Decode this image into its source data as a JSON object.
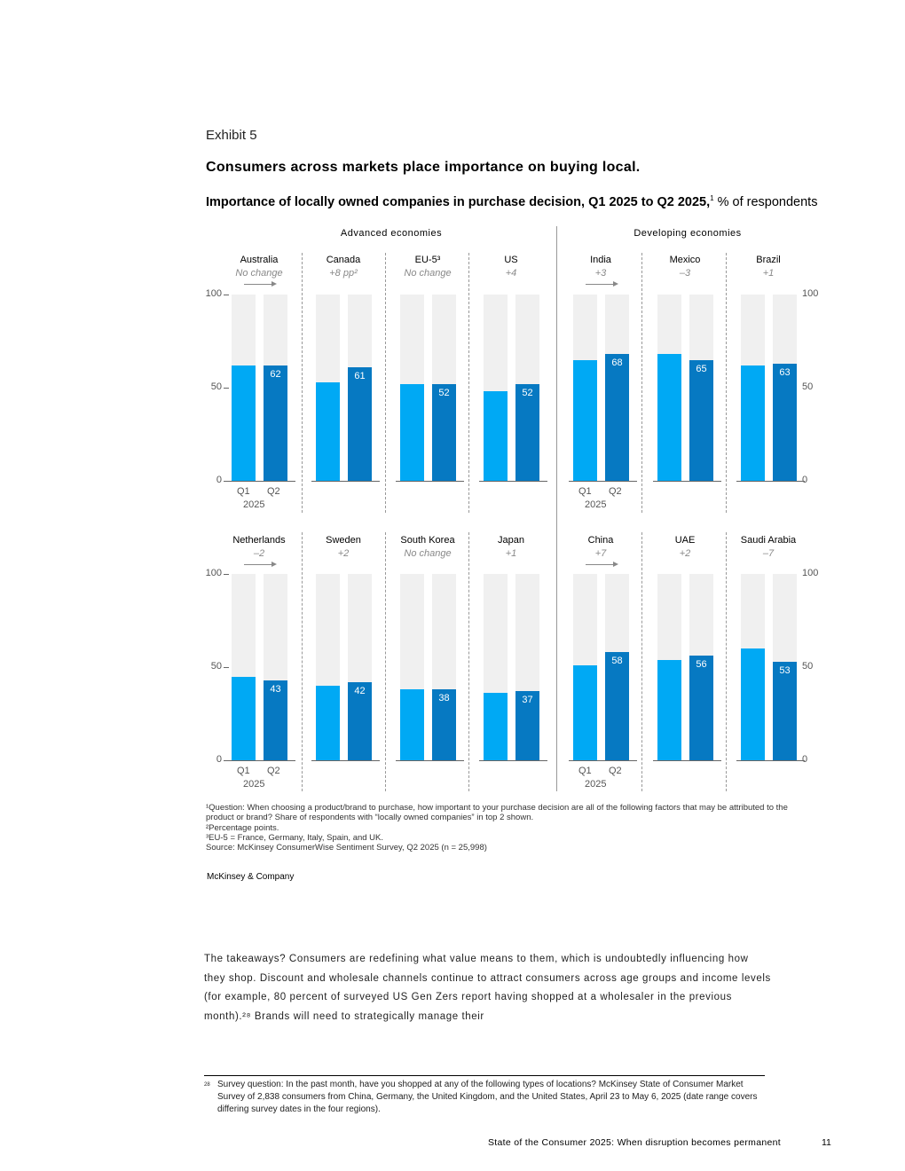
{
  "exhibit": "Exhibit 5",
  "title": "Consumers across markets place importance on buying local.",
  "subtitle_bold": "Importance of locally owned companies in purchase decision, Q1 2025 to Q2 2025,",
  "subtitle_sup": "1",
  "subtitle_rest": " % of respondents",
  "chart_data": {
    "type": "bar",
    "groups": [
      "Advanced economies",
      "Developing economies"
    ],
    "series_names": [
      "Q1",
      "Q2"
    ],
    "x_tick_labels": [
      "Q1",
      "Q2"
    ],
    "year_label": "2025",
    "ylim": [
      0,
      100
    ],
    "y_ticks": [
      "0",
      "50",
      "100"
    ],
    "colors": {
      "Q1": "#00a9f4",
      "Q2": "#0679c2",
      "background": "#f0f0f0"
    },
    "panels": [
      {
        "name": "Australia",
        "change": "No change",
        "group": 0,
        "row": 0,
        "q1": 62,
        "q2": 62,
        "arrow": true
      },
      {
        "name": "Canada",
        "change": "+8 pp²",
        "group": 0,
        "row": 0,
        "q1": 53,
        "q2": 61
      },
      {
        "name": "EU-5³",
        "change": "No change",
        "group": 0,
        "row": 0,
        "q1": 52,
        "q2": 52
      },
      {
        "name": "US",
        "change": "+4",
        "group": 0,
        "row": 0,
        "q1": 48,
        "q2": 52
      },
      {
        "name": "India",
        "change": "+3",
        "group": 1,
        "row": 0,
        "q1": 65,
        "q2": 68,
        "arrow": true
      },
      {
        "name": "Mexico",
        "change": "–3",
        "group": 1,
        "row": 0,
        "q1": 68,
        "q2": 65
      },
      {
        "name": "Brazil",
        "change": "+1",
        "group": 1,
        "row": 0,
        "q1": 62,
        "q2": 63
      },
      {
        "name": "Netherlands",
        "change": "–2",
        "group": 0,
        "row": 1,
        "q1": 45,
        "q2": 43,
        "arrow": true
      },
      {
        "name": "Sweden",
        "change": "+2",
        "group": 0,
        "row": 1,
        "q1": 40,
        "q2": 42
      },
      {
        "name": "South Korea",
        "change": "No change",
        "group": 0,
        "row": 1,
        "q1": 38,
        "q2": 38
      },
      {
        "name": "Japan",
        "change": "+1",
        "group": 0,
        "row": 1,
        "q1": 36,
        "q2": 37
      },
      {
        "name": "China",
        "change": "+7",
        "group": 1,
        "row": 1,
        "q1": 51,
        "q2": 58,
        "arrow": true
      },
      {
        "name": "UAE",
        "change": "+2",
        "group": 1,
        "row": 1,
        "q1": 54,
        "q2": 56
      },
      {
        "name": "Saudi Arabia",
        "change": "–7",
        "group": 1,
        "row": 1,
        "q1": 60,
        "q2": 53
      }
    ]
  },
  "footnotes": [
    "¹Question: When choosing a product/brand to purchase, how important to your purchase decision are all of the following factors that may be attributed to the product or brand? Share of respondents with “locally owned companies” in top 2 shown.",
    "²Percentage points.",
    "³EU-5 = France, Germany, Italy, Spain, and UK.",
    "Source: McKinsey ConsumerWise Sentiment Survey, Q2 2025 (n = 25,998)"
  ],
  "logo": "McKinsey & Company",
  "body_text": "The takeaways? Consumers are redefining what value means to them, which is undoubtedly influencing how they shop. Discount and wholesale channels continue to attract consumers across age groups and income levels (for example, 80 percent of surveyed US Gen Zers report having shopped at a wholesaler in the previous month).²⁸ Brands will need to strategically manage their",
  "page_footnote_marker": "28",
  "page_footnote": "Survey question: In the past month, have you shopped at any of the following types of locations? McKinsey State of Consumer Market Survey of 2,838 consumers from China, Germany, the United Kingdom, and the United States, April 23 to May 6, 2025 (date range covers differing survey dates in the four regions).",
  "page_footer": "State of the Consumer 2025: When disruption becomes permanent",
  "page_number": "11"
}
